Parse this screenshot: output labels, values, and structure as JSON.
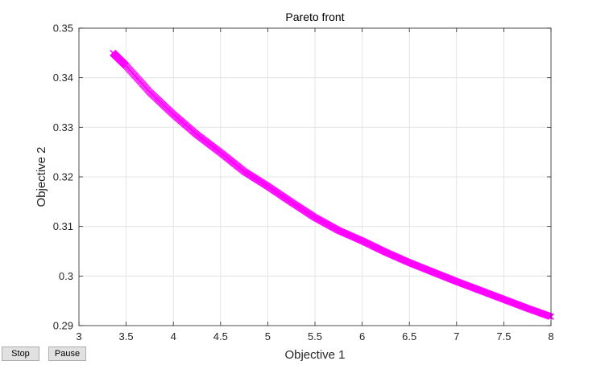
{
  "window": {
    "stop_label": "Stop",
    "pause_label": "Pause"
  },
  "chart_data": {
    "type": "scatter",
    "title": "Pareto front",
    "xlabel": "Objective 1",
    "ylabel": "Objective 2",
    "xlim": [
      3,
      8
    ],
    "ylim": [
      0.29,
      0.35
    ],
    "xticks": [
      3,
      3.5,
      4,
      4.5,
      5,
      5.5,
      6,
      6.5,
      7,
      7.5,
      8
    ],
    "xtick_labels": [
      "3",
      "3.5",
      "4",
      "4.5",
      "5",
      "5.5",
      "6",
      "6.5",
      "7",
      "7.5",
      "8"
    ],
    "yticks": [
      0.29,
      0.3,
      0.31,
      0.32,
      0.33,
      0.34,
      0.35
    ],
    "ytick_labels": [
      "0.29",
      "0.3",
      "0.31",
      "0.32",
      "0.33",
      "0.34",
      "0.35"
    ],
    "grid": true,
    "marker": "x",
    "marker_color": "#ff00ff",
    "series": [
      {
        "x": [
          3.36,
          3.5,
          3.75,
          4.0,
          4.25,
          4.5,
          4.75,
          5.0,
          5.25,
          5.5,
          5.75,
          6.0,
          6.25,
          6.5,
          6.75,
          7.0,
          7.25,
          7.5,
          7.75,
          8.0
        ],
        "y": [
          0.345,
          0.3424,
          0.3371,
          0.3326,
          0.3285,
          0.3249,
          0.3211,
          0.3181,
          0.3149,
          0.3118,
          0.3092,
          0.3071,
          0.3048,
          0.3027,
          0.3008,
          0.2989,
          0.2971,
          0.2953,
          0.2935,
          0.2918
        ]
      }
    ]
  }
}
